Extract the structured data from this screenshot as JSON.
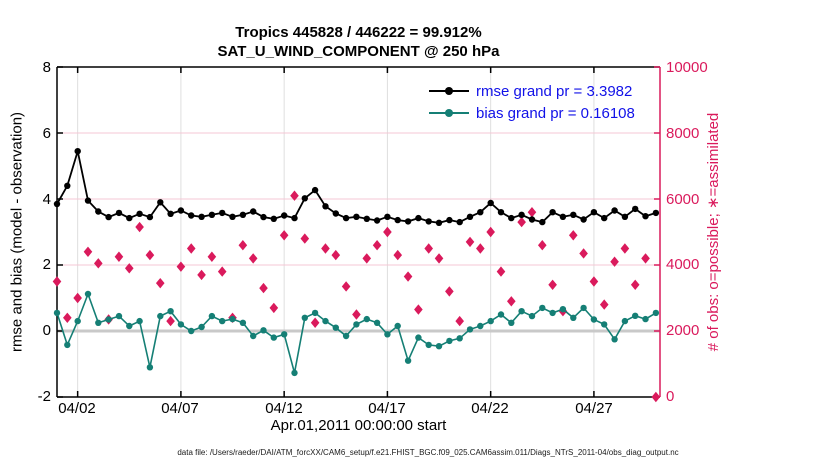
{
  "title": {
    "line1": "Tropics 445828 / 446222 = 99.912%",
    "line2": "SAT_U_WIND_COMPONENT @ 250 hPa"
  },
  "axes": {
    "left_label": "rmse and bias (model - observation)",
    "right_label": "# of obs: o=possible; ∗=assimilated",
    "x_label": "Apr.01,2011 00:00:00 start",
    "left_ticks": [
      "-2",
      "0",
      "2",
      "4",
      "6",
      "8"
    ],
    "right_ticks": [
      "0",
      "2000",
      "4000",
      "6000",
      "8000",
      "10000"
    ],
    "x_ticks": [
      "04/02",
      "04/07",
      "04/12",
      "04/17",
      "04/22",
      "04/27"
    ]
  },
  "legend": {
    "items": [
      {
        "label": "rmse grand pr = 3.3982",
        "series": "rmse"
      },
      {
        "label": "bias grand pr = 0.16108",
        "series": "bias"
      }
    ]
  },
  "footer": {
    "datafile": "data file: /Users/raeder/DAI/ATM_forcXX/CAM6_setup/f.e21.FHIST_BGC.f09_025.CAM6assim.011/Diags_NTrS_2011-04/obs_diag_output.nc"
  },
  "colors": {
    "rmse": "#000000",
    "bias": "#157F75",
    "obs": "#DA1A5C",
    "legend_text": "#1111E8",
    "grid_vertical": "#DEDEDE",
    "grid_horizontal": "#F4C7D4",
    "zero_line": "#C9C9C9",
    "axis_left": "#000000",
    "axis_right": "#DA1A5C",
    "title": "#000000",
    "footer": "#1A1A1A"
  },
  "chart_data": {
    "type": "line",
    "title": "Tropics 445828 / 446222 = 99.912% | SAT_U_WIND_COMPONENT @ 250 hPa",
    "xlabel": "Apr.01,2011 00:00:00 start",
    "ylabel_left": "rmse and bias (model - observation)",
    "ylabel_right": "# of obs: o=possible; ∗=assimilated",
    "x_unit": "days since Apr.01,2011 00:00:00 (12-hourly bins)",
    "xlim": [
      0,
      29.2
    ],
    "ylim_left": [
      -2,
      8
    ],
    "ylim_right": [
      0,
      10000
    ],
    "x_tick_days": [
      1,
      6,
      11,
      16,
      21,
      26
    ],
    "x_tick_labels": [
      "04/02",
      "04/07",
      "04/12",
      "04/17",
      "04/22",
      "04/27"
    ],
    "left_tick_values": [
      -2,
      0,
      2,
      4,
      6,
      8
    ],
    "right_tick_values": [
      0,
      2000,
      4000,
      6000,
      8000,
      10000
    ],
    "grid": true,
    "zero_line": true,
    "legend_position": "top-right-inside",
    "x": [
      0,
      0.5,
      1,
      1.5,
      2,
      2.5,
      3,
      3.5,
      4,
      4.5,
      5,
      5.5,
      6,
      6.5,
      7,
      7.5,
      8,
      8.5,
      9,
      9.5,
      10,
      10.5,
      11,
      11.5,
      12,
      12.5,
      13,
      13.5,
      14,
      14.5,
      15,
      15.5,
      16,
      16.5,
      17,
      17.5,
      18,
      18.5,
      19,
      19.5,
      20,
      20.5,
      21,
      21.5,
      22,
      22.5,
      23,
      23.5,
      24,
      24.5,
      25,
      25.5,
      26,
      26.5,
      27,
      27.5,
      28,
      28.5,
      29
    ],
    "series": [
      {
        "name": "rmse",
        "axis": "left",
        "color": "#000000",
        "marker": "filled-circle",
        "line": true,
        "grand_mean": 3.3982,
        "values": [
          3.85,
          4.4,
          5.45,
          3.95,
          3.62,
          3.45,
          3.58,
          3.42,
          3.55,
          3.45,
          3.9,
          3.55,
          3.65,
          3.5,
          3.46,
          3.52,
          3.58,
          3.46,
          3.52,
          3.62,
          3.45,
          3.4,
          3.5,
          3.42,
          4.02,
          4.27,
          3.78,
          3.56,
          3.42,
          3.46,
          3.4,
          3.35,
          3.46,
          3.36,
          3.32,
          3.42,
          3.32,
          3.28,
          3.36,
          3.3,
          3.46,
          3.6,
          3.88,
          3.6,
          3.42,
          3.52,
          3.38,
          3.3,
          3.6,
          3.46,
          3.52,
          3.38,
          3.6,
          3.42,
          3.65,
          3.46,
          3.7,
          3.48,
          3.58
        ]
      },
      {
        "name": "bias",
        "axis": "left",
        "color": "#157F75",
        "marker": "filled-circle",
        "line": true,
        "grand_mean": 0.16108,
        "values": [
          0.55,
          -0.42,
          0.3,
          1.12,
          0.25,
          0.35,
          0.45,
          0.15,
          0.3,
          -1.1,
          0.45,
          0.6,
          0.2,
          0.0,
          0.12,
          0.45,
          0.3,
          0.36,
          0.25,
          -0.15,
          0.02,
          -0.2,
          -0.1,
          -1.27,
          0.4,
          0.55,
          0.3,
          0.1,
          -0.15,
          0.2,
          0.36,
          0.25,
          -0.1,
          0.15,
          -0.9,
          -0.2,
          -0.42,
          -0.46,
          -0.3,
          -0.22,
          0.05,
          0.15,
          0.3,
          0.5,
          0.25,
          0.6,
          0.45,
          0.7,
          0.55,
          0.66,
          0.4,
          0.7,
          0.35,
          0.2,
          -0.25,
          0.3,
          0.46,
          0.36,
          0.55
        ]
      },
      {
        "name": "num_obs",
        "axis": "right",
        "color": "#DA1A5C",
        "marker": "diamond",
        "line": false,
        "possible_total": 446222,
        "assimilated_total": 445828,
        "values": [
          3500,
          2400,
          3000,
          4400,
          4050,
          2350,
          4250,
          3900,
          5150,
          4300,
          3450,
          2300,
          3950,
          4500,
          3700,
          4250,
          3800,
          2400,
          4600,
          4200,
          3300,
          2700,
          4900,
          6100,
          4800,
          2250,
          4500,
          4300,
          3350,
          2500,
          4200,
          4600,
          5000,
          4300,
          3650,
          2650,
          4500,
          4200,
          3200,
          2300,
          4700,
          4500,
          5000,
          3800,
          2900,
          5300,
          5600,
          4600,
          3400,
          2600,
          4900,
          4350,
          3500,
          2800,
          4100,
          4500,
          3400,
          4200,
          0
        ]
      }
    ]
  }
}
